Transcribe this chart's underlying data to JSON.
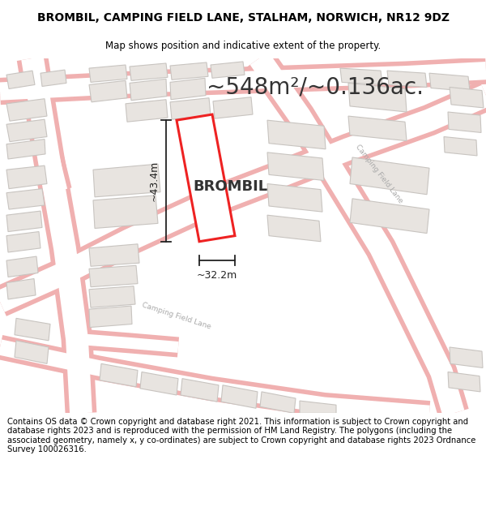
{
  "title": "BROMBIL, CAMPING FIELD LANE, STALHAM, NORWICH, NR12 9DZ",
  "subtitle": "Map shows position and indicative extent of the property.",
  "footer": "Contains OS data © Crown copyright and database right 2021. This information is subject to Crown copyright and database rights 2023 and is reproduced with the permission of HM Land Registry. The polygons (including the associated geometry, namely x, y co-ordinates) are subject to Crown copyright and database rights 2023 Ordnance Survey 100026316.",
  "area_label": "~548m²/~0.136ac.",
  "property_name": "BROMBIL",
  "dim_width": "~32.2m",
  "dim_height": "~43.4m",
  "map_bg": "#f7f5f2",
  "road_fill": "#ffffff",
  "road_outline": "#f0b0b0",
  "building_fill": "#e8e4e0",
  "building_stroke": "#c8c4c0",
  "highlight_color": "#ee2222",
  "highlight_fill": "#ffffff",
  "text_color": "#333333",
  "road_label_color": "#aaaaaa",
  "title_fontsize": 10,
  "subtitle_fontsize": 8.5,
  "footer_fontsize": 7.2,
  "area_fontsize": 20,
  "property_fontsize": 13,
  "dim_fontsize": 9
}
